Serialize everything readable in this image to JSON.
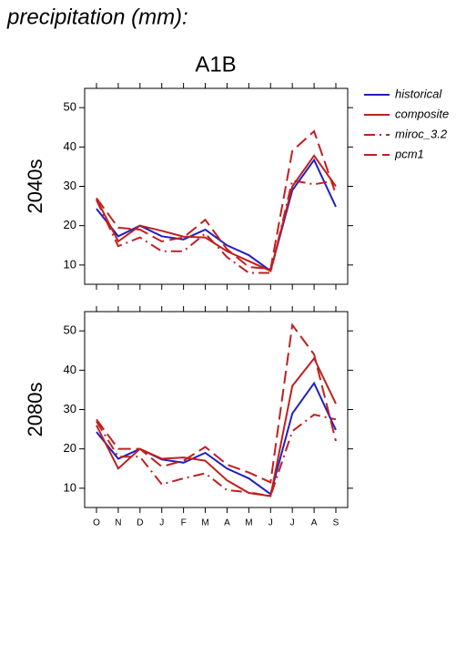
{
  "chart_data": [
    {
      "type": "line",
      "title": "precipitation (mm):",
      "subtitle": "A1B",
      "ylabel": "2040s",
      "ylim": [
        5.1,
        54.9
      ],
      "yticks": [
        10,
        20,
        30,
        40,
        50
      ],
      "series": [
        {
          "name": "historical",
          "color": "#2020c0",
          "style": "solid",
          "values": [
            24.3,
            17.3,
            20,
            17.3,
            16.5,
            19,
            15,
            12.5,
            8.5,
            29,
            36.7,
            24.8
          ]
        },
        {
          "name": "composite",
          "color": "#c02020",
          "style": "solid",
          "values": [
            26.8,
            16,
            20,
            18.7,
            17.2,
            17,
            13.5,
            11,
            8.5,
            30,
            37.8,
            30
          ]
        },
        {
          "name": "miroc_3.2",
          "color": "#c02020",
          "style": "dashdot",
          "values": [
            26.5,
            14.8,
            17,
            13.5,
            13.5,
            18,
            12,
            8,
            8,
            31.5,
            30.5,
            31.5
          ]
        },
        {
          "name": "pcm1",
          "color": "#c02020",
          "style": "longdash",
          "values": [
            27,
            19.5,
            19,
            16,
            17,
            21.5,
            14,
            9.5,
            9,
            39,
            44,
            28
          ]
        }
      ]
    },
    {
      "type": "line",
      "ylabel": "2080s",
      "categories": [
        "O",
        "N",
        "D",
        "J",
        "F",
        "M",
        "A",
        "M",
        "J",
        "J",
        "A",
        "S"
      ],
      "ylim": [
        5.1,
        54.9
      ],
      "yticks": [
        10,
        20,
        30,
        40,
        50
      ],
      "series": [
        {
          "name": "historical",
          "color": "#2020c0",
          "style": "solid",
          "values": [
            24.3,
            17.5,
            20,
            17.3,
            16.5,
            19,
            15,
            12.5,
            8.5,
            29,
            36.7,
            24.8
          ]
        },
        {
          "name": "composite",
          "color": "#c02020",
          "style": "solid",
          "values": [
            26,
            15,
            20,
            17.5,
            17.8,
            17,
            12,
            8.8,
            8,
            36,
            43,
            31.5
          ]
        },
        {
          "name": "miroc_3.2",
          "color": "#c02020",
          "style": "dashdot",
          "values": [
            27,
            18,
            18,
            11,
            12.5,
            13.8,
            9.5,
            9,
            8,
            24.5,
            28.7,
            27.5
          ]
        },
        {
          "name": "pcm1",
          "color": "#c02020",
          "style": "longdash",
          "values": [
            27.5,
            20,
            20,
            15.5,
            17,
            20.5,
            16,
            14,
            11.5,
            51.5,
            44,
            22
          ]
        }
      ]
    }
  ]
}
